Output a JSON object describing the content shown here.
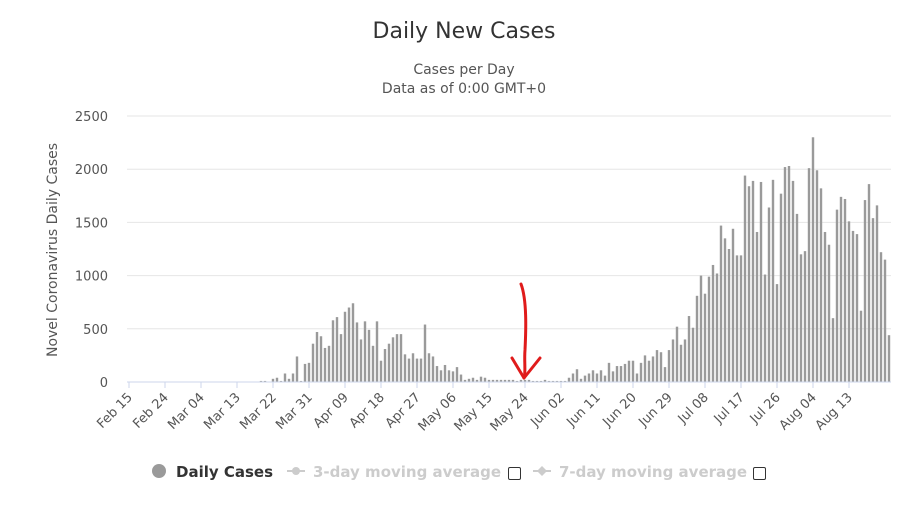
{
  "chart_data": {
    "type": "bar",
    "title": "Daily New Cases",
    "subtitle_line1": "Cases per Day",
    "subtitle_line2": "Data as of 0:00 GMT+0",
    "ylabel": "Novel Coronavirus Daily Cases",
    "xlabel": "",
    "ylim": [
      0,
      2500
    ],
    "yticks": [
      0,
      500,
      1000,
      1500,
      2000,
      2500
    ],
    "grid": true,
    "legend_position": "bottom",
    "bar_color": "#9a9a9a",
    "xtick_labels": [
      "Feb 15",
      "Feb 24",
      "Mar 04",
      "Mar 13",
      "Mar 22",
      "Mar 31",
      "Apr 09",
      "Apr 18",
      "Apr 27",
      "May 06",
      "May 15",
      "May 24",
      "Jun 02",
      "Jun 11",
      "Jun 20",
      "Jun 29",
      "Jul 08",
      "Jul 17",
      "Jul 26",
      "Aug 04",
      "Aug 13"
    ],
    "start_label": "Feb 15",
    "series": [
      {
        "name": "Daily Cases",
        "values": [
          0,
          0,
          0,
          0,
          0,
          0,
          0,
          0,
          0,
          0,
          0,
          0,
          0,
          0,
          0,
          0,
          0,
          0,
          0,
          0,
          0,
          0,
          0,
          0,
          0,
          0,
          0,
          0,
          0,
          0,
          0,
          0,
          0,
          10,
          10,
          0,
          30,
          40,
          10,
          80,
          30,
          80,
          240,
          10,
          170,
          180,
          360,
          470,
          430,
          320,
          340,
          580,
          610,
          450,
          660,
          700,
          740,
          560,
          400,
          570,
          490,
          340,
          570,
          200,
          310,
          360,
          420,
          450,
          450,
          260,
          220,
          270,
          220,
          220,
          540,
          270,
          240,
          150,
          110,
          160,
          110,
          100,
          140,
          70,
          20,
          30,
          40,
          20,
          50,
          40,
          20,
          20,
          20,
          20,
          20,
          20,
          20,
          10,
          20,
          20,
          20,
          10,
          10,
          10,
          20,
          10,
          10,
          10,
          10,
          10,
          40,
          80,
          120,
          30,
          60,
          80,
          110,
          80,
          110,
          60,
          180,
          100,
          150,
          150,
          170,
          200,
          200,
          80,
          180,
          250,
          200,
          240,
          300,
          280,
          140,
          300,
          400,
          520,
          350,
          400,
          620,
          510,
          810,
          1000,
          830,
          990,
          1100,
          1020,
          1470,
          1350,
          1250,
          1440,
          1190,
          1190,
          1940,
          1840,
          1890,
          1410,
          1880,
          1010,
          1640,
          1900,
          920,
          1770,
          2020,
          2030,
          1890,
          1580,
          1200,
          1230,
          2010,
          2300,
          1990,
          1820,
          1410,
          1290,
          600,
          1620,
          1740,
          1720,
          1510,
          1420,
          1390,
          670,
          1710,
          1860,
          1540,
          1660,
          1220,
          1150,
          440
        ]
      },
      {
        "name": "3-day moving average",
        "visible": false,
        "values": []
      },
      {
        "name": "7-day moving average",
        "visible": false,
        "values": []
      }
    ]
  },
  "legend": {
    "daily_label": "Daily Cases",
    "ma3_label": "3-day moving average",
    "ma7_label": "7-day moving average",
    "daily_color": "#9a9a9a",
    "inactive_color": "#cccccc"
  },
  "annotation": {
    "arrow_color": "#e01b1b"
  }
}
